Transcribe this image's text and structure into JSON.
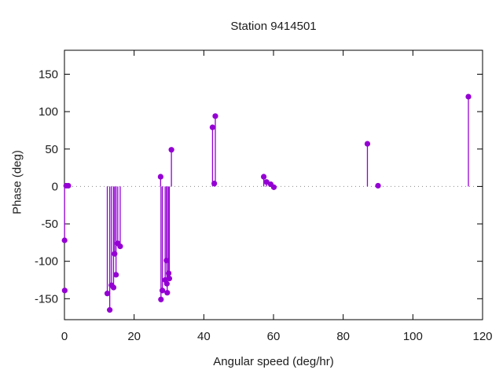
{
  "window": {
    "title": "Station 9414501"
  },
  "chart_data": {
    "type": "stem",
    "title": "Station 9414501",
    "xlabel": "Angular speed (deg/hr)",
    "ylabel": "Phase (deg)",
    "xlim": [
      0,
      120
    ],
    "ylim": [
      -178,
      182
    ],
    "xticks": [
      0,
      20,
      40,
      60,
      80,
      100,
      120
    ],
    "yticks": [
      -150,
      -100,
      -50,
      0,
      50,
      100,
      150
    ],
    "grid": false,
    "legend": "none",
    "zero_line": {
      "show": true,
      "style": "dotted",
      "color": "#8a8a8a"
    },
    "colors": {
      "series": "#9400d3",
      "axis": "#000000",
      "text": "#1c1c1c",
      "background": "#ffffff"
    },
    "point_radius": 3.6,
    "points": [
      {
        "x": 0.04,
        "y": -72,
        "stem": true
      },
      {
        "x": 0.08,
        "y": -139,
        "stem": false
      },
      {
        "x": 0.5,
        "y": 1,
        "stem": true
      },
      {
        "x": 1.1,
        "y": 1,
        "stem": true
      },
      {
        "x": 12.3,
        "y": -143,
        "stem": true
      },
      {
        "x": 13.0,
        "y": -165,
        "stem": true
      },
      {
        "x": 13.5,
        "y": -132,
        "stem": true
      },
      {
        "x": 14.1,
        "y": -135,
        "stem": true
      },
      {
        "x": 14.4,
        "y": -90,
        "stem": true
      },
      {
        "x": 14.8,
        "y": -118,
        "stem": true
      },
      {
        "x": 15.3,
        "y": -76,
        "stem": true
      },
      {
        "x": 16.0,
        "y": -80,
        "stem": true
      },
      {
        "x": 27.6,
        "y": 13,
        "stem": true
      },
      {
        "x": 27.7,
        "y": -151,
        "stem": true
      },
      {
        "x": 28.1,
        "y": -139,
        "stem": true
      },
      {
        "x": 28.9,
        "y": -125,
        "stem": true
      },
      {
        "x": 29.3,
        "y": -99,
        "stem": true
      },
      {
        "x": 29.4,
        "y": -130,
        "stem": true
      },
      {
        "x": 29.5,
        "y": -142,
        "stem": true
      },
      {
        "x": 29.9,
        "y": -116,
        "stem": true
      },
      {
        "x": 30.1,
        "y": -123,
        "stem": true
      },
      {
        "x": 30.7,
        "y": 49,
        "stem": true
      },
      {
        "x": 42.5,
        "y": 79,
        "stem": true
      },
      {
        "x": 43.0,
        "y": 4,
        "stem": true
      },
      {
        "x": 43.3,
        "y": 94,
        "stem": true
      },
      {
        "x": 57.2,
        "y": 13,
        "stem": true
      },
      {
        "x": 58.0,
        "y": 6,
        "stem": true
      },
      {
        "x": 59.2,
        "y": 3,
        "stem": true
      },
      {
        "x": 60.1,
        "y": -1,
        "stem": true
      },
      {
        "x": 86.95,
        "y": 57,
        "stem": true
      },
      {
        "x": 90.0,
        "y": 1,
        "stem": true
      },
      {
        "x": 115.94,
        "y": 120,
        "stem": true
      }
    ]
  }
}
